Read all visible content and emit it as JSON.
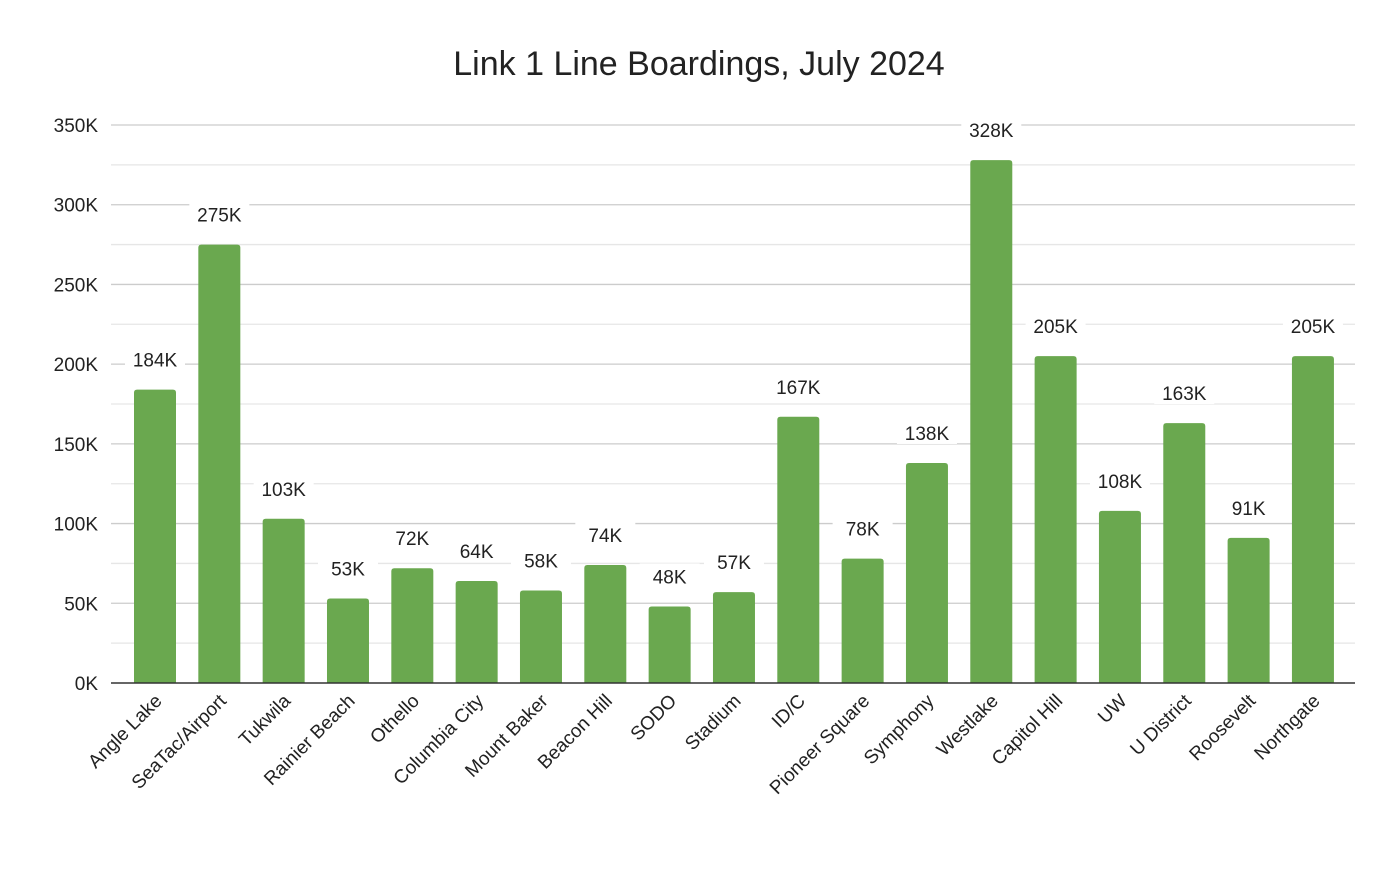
{
  "chart_data": {
    "type": "bar",
    "title": "Link 1 Line Boardings, July 2024",
    "xlabel": "",
    "ylabel": "",
    "ylim": [
      0,
      350000
    ],
    "yticks": [
      0,
      50000,
      100000,
      150000,
      200000,
      250000,
      300000,
      350000
    ],
    "ytick_labels": [
      "0K",
      "50K",
      "100K",
      "150K",
      "200K",
      "250K",
      "300K",
      "350K"
    ],
    "grid": true,
    "legend": "none",
    "bar_color": "#6aa84f",
    "categories": [
      "Angle Lake",
      "SeaTac/Airport",
      "Tukwila",
      "Rainier Beach",
      "Othello",
      "Columbia City",
      "Mount Baker",
      "Beacon Hill",
      "SODO",
      "Stadium",
      "ID/C",
      "Pioneer Square",
      "Symphony",
      "Westlake",
      "Capitol Hill",
      "UW",
      "U District",
      "Roosevelt",
      "Northgate"
    ],
    "values": [
      184000,
      275000,
      103000,
      53000,
      72000,
      64000,
      58000,
      74000,
      48000,
      57000,
      167000,
      78000,
      138000,
      328000,
      205000,
      108000,
      163000,
      91000,
      205000
    ],
    "data_labels": [
      "184K",
      "275K",
      "103K",
      "53K",
      "72K",
      "64K",
      "58K",
      "74K",
      "48K",
      "57K",
      "167K",
      "78K",
      "138K",
      "328K",
      "205K",
      "108K",
      "163K",
      "91K",
      "205K"
    ]
  }
}
